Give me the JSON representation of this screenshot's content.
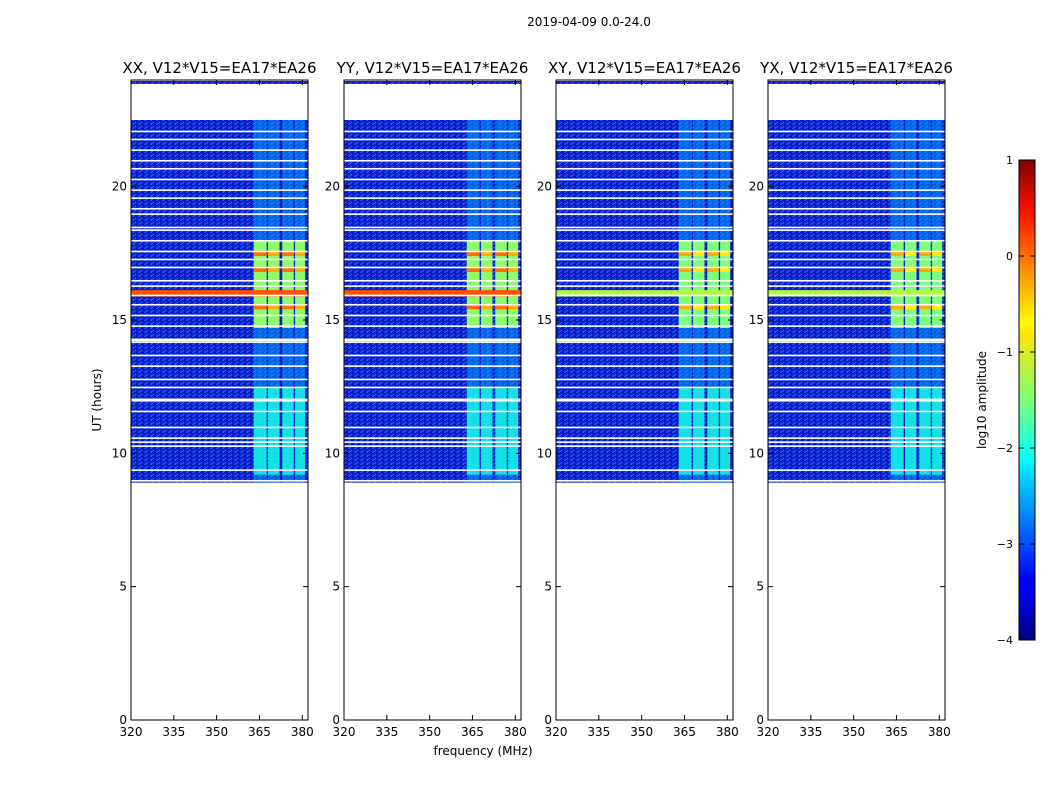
{
  "suptitle": "2019-04-09 0.0-24.0",
  "chart_data": {
    "type": "heatmap",
    "xlabel": "frequency (MHz)",
    "ylabel": "UT (hours)",
    "xlim": [
      320,
      382
    ],
    "ylim": [
      0,
      24
    ],
    "xticks": [
      320,
      335,
      350,
      365,
      380
    ],
    "yticks": [
      0,
      5,
      10,
      15,
      20
    ],
    "data_time_range": [
      8.9,
      22.5
    ],
    "panels": [
      {
        "title": "XX, V12*V15=EA17*EA26",
        "strong_band": true
      },
      {
        "title": "YY, V12*V15=EA17*EA26",
        "strong_band": true
      },
      {
        "title": "XY, V12*V15=EA17*EA26",
        "strong_band": false
      },
      {
        "title": "YX, V12*V15=EA17*EA26",
        "strong_band": false
      }
    ],
    "rfi_band_MHz": [
      [
        363,
        367.5
      ],
      [
        368,
        372
      ],
      [
        373,
        377
      ],
      [
        377.5,
        381
      ]
    ],
    "rfi_strong_hours": [
      14.7,
      18.0
    ],
    "bright_line_hour": 16.0,
    "colorbar": {
      "label": "log10 amplitude",
      "ticks": [
        1,
        0,
        -1,
        -2,
        -3,
        -4
      ],
      "range": [
        -4,
        1
      ],
      "colormap": "jet"
    }
  }
}
